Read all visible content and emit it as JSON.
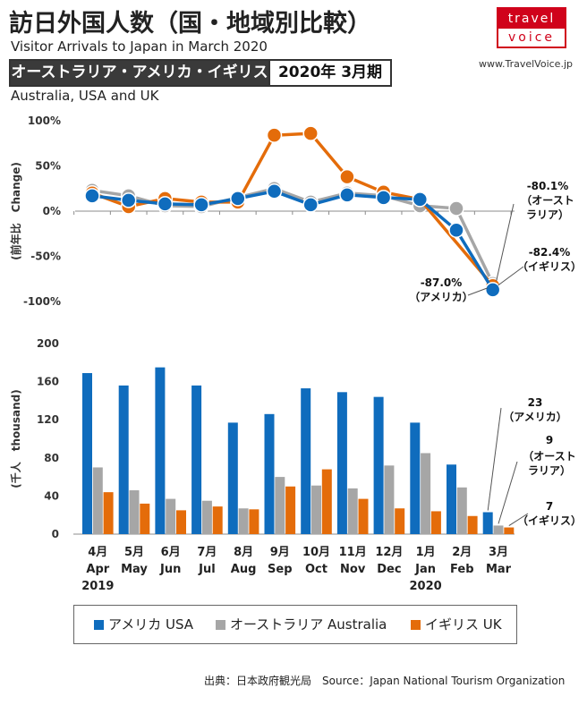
{
  "header": {
    "title_jp": "訪日外国人数（国・地域別比較）",
    "title_en": "Visitor Arrivals to Japan in March 2020",
    "banner_left": "オーストラリア・アメリカ・イギリス",
    "banner_right": "2020年 3月期",
    "subtitle": "Australia, USA and UK",
    "logo_top": "travel",
    "logo_bottom": "voice",
    "site": "www.TravelVoice.jp"
  },
  "legend": {
    "usa": "アメリカ USA",
    "australia": "オーストラリア Australia",
    "uk": "イギリス UK"
  },
  "source": "出典：日本政府観光局　Source：Japan  National Tourism  Organization",
  "colors": {
    "usa": "#0f6cbd",
    "australia": "#a6a6a6",
    "uk": "#e46c0a"
  },
  "chart_data": [
    {
      "type": "line",
      "ylabel": "(前年比　Change)",
      "ylim": [
        -100,
        100
      ],
      "yticks": [
        "100%",
        "50%",
        "0%",
        "-50%",
        "-100%"
      ],
      "categories": [
        "4月",
        "5月",
        "6月",
        "7月",
        "8月",
        "9月",
        "10月",
        "11月",
        "12月",
        "1月",
        "2月",
        "3月"
      ],
      "series": [
        {
          "name": "アメリカ USA",
          "values": [
            17,
            12,
            8,
            7,
            14,
            22,
            7,
            18,
            15,
            13,
            -21,
            -87.0
          ]
        },
        {
          "name": "オーストラリア Australia",
          "values": [
            23,
            17,
            6,
            5,
            15,
            25,
            10,
            20,
            17,
            6,
            3,
            -80.1
          ]
        },
        {
          "name": "イギリス UK",
          "values": [
            20,
            5,
            14,
            10,
            10,
            84,
            86,
            38,
            21,
            13,
            null,
            -82.4
          ]
        }
      ],
      "annotations": {
        "aus_value": "-80.1%",
        "aus_l1": "（オースト",
        "aus_l2": "ラリア）",
        "uk_value": "-82.4%",
        "uk_l1": "（イギリス）",
        "usa_value": "-87.0%",
        "usa_l1": "（アメリカ）"
      }
    },
    {
      "type": "bar",
      "ylabel": "(千人　thousand)",
      "ylim": [
        0,
        200
      ],
      "yticks": [
        "200",
        "160",
        "120",
        "80",
        "40",
        "0"
      ],
      "categories_jp": [
        "4月",
        "5月",
        "6月",
        "7月",
        "8月",
        "9月",
        "10月",
        "11月",
        "12月",
        "1月",
        "2月",
        "3月"
      ],
      "categories_en": [
        "Apr",
        "May",
        "Jun",
        "Jul",
        "Aug",
        "Sep",
        "Oct",
        "Nov",
        "Dec",
        "Jan",
        "Feb",
        "Mar"
      ],
      "year_labels": [
        "2019",
        "2020"
      ],
      "series": [
        {
          "name": "アメリカ USA",
          "values": [
            169,
            156,
            175,
            156,
            117,
            126,
            153,
            149,
            144,
            117,
            73,
            23
          ]
        },
        {
          "name": "オーストラリア Australia",
          "values": [
            70,
            46,
            37,
            35,
            27,
            60,
            51,
            48,
            72,
            85,
            49,
            9
          ]
        },
        {
          "name": "イギリス UK",
          "values": [
            44,
            32,
            25,
            29,
            26,
            50,
            68,
            37,
            27,
            24,
            19,
            7
          ]
        }
      ],
      "annotations": {
        "usa_value": "23",
        "usa_l1": "（アメリカ）",
        "aus_value": "9",
        "aus_l1": "（オースト",
        "aus_l2": "ラリア）",
        "uk_value": "7",
        "uk_l1": "（イギリス）"
      }
    }
  ]
}
